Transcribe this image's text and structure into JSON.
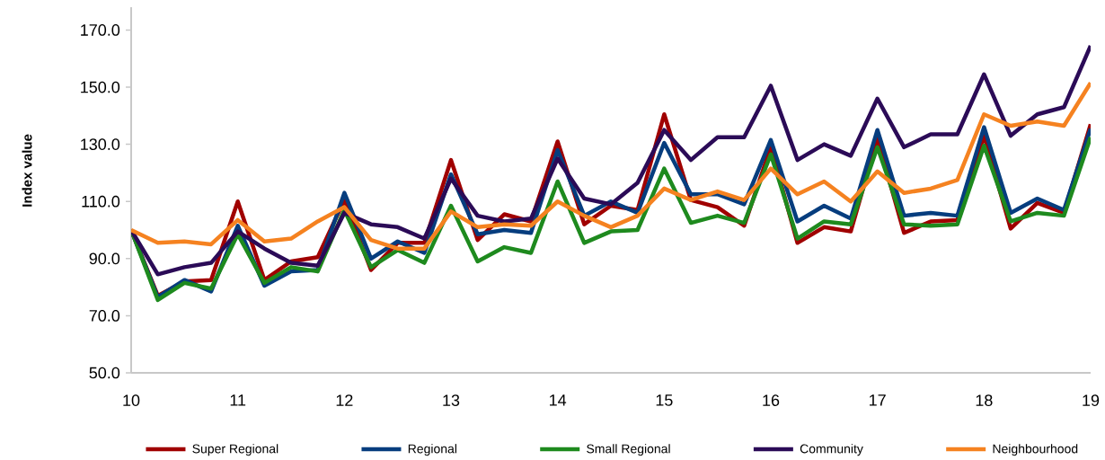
{
  "chart_data": {
    "type": "line",
    "ylabel": "Index value",
    "x": [
      10,
      10.25,
      10.5,
      10.75,
      11,
      11.25,
      11.5,
      11.75,
      12,
      12.25,
      12.5,
      12.75,
      13,
      13.25,
      13.5,
      13.75,
      14,
      14.25,
      14.5,
      14.75,
      15,
      15.25,
      15.5,
      15.75,
      16,
      16.25,
      16.5,
      16.75,
      17,
      17.25,
      17.5,
      17.75,
      18,
      18.25,
      18.5,
      18.75,
      19
    ],
    "xlim": [
      10,
      19
    ],
    "xticks": [
      10,
      11,
      12,
      13,
      14,
      15,
      16,
      17,
      18,
      19
    ],
    "ylim": [
      50,
      178
    ],
    "yticks": [
      {
        "value": 50,
        "label": "50.0"
      },
      {
        "value": 70,
        "label": "70.0"
      },
      {
        "value": 90,
        "label": "90.0"
      },
      {
        "value": 110,
        "label": "110.0"
      },
      {
        "value": 130,
        "label": "130.0"
      },
      {
        "value": 150,
        "label": "150.0"
      },
      {
        "value": 170,
        "label": "170.0"
      }
    ],
    "legend": "bottom",
    "marker": "none",
    "line_style": "solid",
    "series": [
      {
        "name": "Super Regional",
        "color": "#a00000",
        "values": [
          100,
          77,
          82,
          82.5,
          110,
          82.5,
          89,
          90.5,
          110.5,
          86,
          95.5,
          95.5,
          124.5,
          96.5,
          105.5,
          103,
          131,
          102,
          108.5,
          107,
          140.5,
          110.5,
          108,
          101.5,
          129,
          95.5,
          101,
          99.5,
          132,
          99,
          103,
          103.5,
          133,
          100.5,
          109.5,
          106,
          137
        ]
      },
      {
        "name": "Regional",
        "color": "#063d7e",
        "values": [
          100,
          76.5,
          82.5,
          78.5,
          101.5,
          80.5,
          85.5,
          86,
          113,
          90,
          96,
          92,
          119.5,
          98.5,
          100,
          99,
          128,
          105,
          110,
          106,
          130.5,
          112.5,
          112.5,
          109,
          131.5,
          103,
          108.5,
          104,
          135,
          105,
          106,
          105,
          136,
          106,
          111,
          107,
          135.5
        ]
      },
      {
        "name": "Small Regional",
        "color": "#1e8a1e",
        "values": [
          100,
          75.5,
          81.5,
          79.5,
          98.5,
          81.5,
          87,
          85.5,
          107,
          87,
          93,
          88.5,
          108.5,
          89,
          94,
          92,
          117,
          95.5,
          99.5,
          100,
          121.5,
          102.5,
          105,
          102.5,
          126.5,
          97,
          103,
          102,
          129,
          102,
          101.5,
          102,
          129.5,
          103,
          106,
          105,
          132.5
        ]
      },
      {
        "name": "Community",
        "color": "#2b0b57",
        "values": [
          100,
          84.5,
          87,
          88.5,
          99.5,
          93.5,
          88.5,
          87.5,
          106,
          102,
          101,
          97,
          118,
          105,
          103,
          104,
          125,
          111,
          109,
          116.5,
          135,
          124.5,
          132.5,
          132.5,
          150.5,
          124.5,
          130,
          126,
          146,
          129,
          133.5,
          133.5,
          154.5,
          133,
          140.5,
          143,
          164.5
        ]
      },
      {
        "name": "Neighbourhood",
        "color": "#f58220",
        "values": [
          100,
          95.5,
          96,
          95,
          103.5,
          96,
          97,
          103,
          108,
          96.5,
          93.5,
          93.5,
          106.5,
          101,
          102,
          101.5,
          110,
          105,
          101,
          105,
          114.5,
          110.5,
          113.5,
          110.5,
          121.5,
          112.5,
          117,
          110,
          120.5,
          113,
          114.5,
          117.5,
          140.5,
          136.5,
          138,
          136.5,
          151.5
        ]
      }
    ]
  }
}
